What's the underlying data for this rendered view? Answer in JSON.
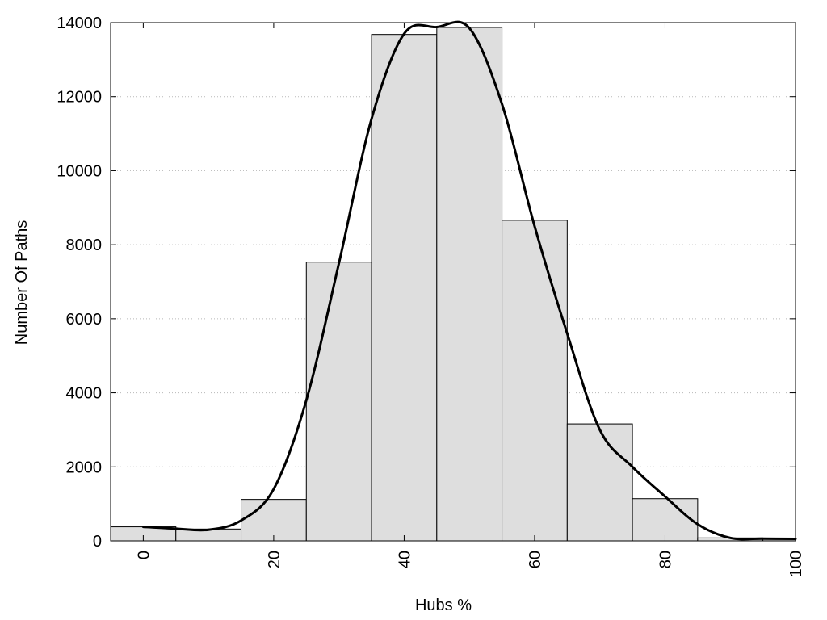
{
  "chart_data": {
    "type": "bar",
    "xlabel": "Hubs %",
    "ylabel": "Number Of Paths",
    "xlim": [
      -5,
      100
    ],
    "ylim": [
      0,
      14000
    ],
    "x_ticks": [
      "0",
      "20",
      "40",
      "60",
      "80",
      "100"
    ],
    "y_ticks": [
      "0",
      "2000",
      "4000",
      "6000",
      "8000",
      "10000",
      "12000",
      "14000"
    ],
    "grid": "horizontal dotted",
    "bar_color": "#dedede",
    "bins": [
      {
        "x0": -5,
        "x1": 5,
        "value": 380
      },
      {
        "x0": 5,
        "x1": 15,
        "value": 320
      },
      {
        "x0": 15,
        "x1": 25,
        "value": 1120
      },
      {
        "x0": 25,
        "x1": 35,
        "value": 7530
      },
      {
        "x0": 35,
        "x1": 45,
        "value": 13680
      },
      {
        "x0": 45,
        "x1": 55,
        "value": 13870
      },
      {
        "x0": 55,
        "x1": 65,
        "value": 8660
      },
      {
        "x0": 65,
        "x1": 75,
        "value": 3160
      },
      {
        "x0": 75,
        "x1": 85,
        "value": 1140
      },
      {
        "x0": 85,
        "x1": 95,
        "value": 80
      },
      {
        "x0": 95,
        "x1": 100,
        "value": 60
      }
    ],
    "density_curve": {
      "x": [
        0,
        5,
        10,
        15,
        20,
        25,
        30,
        35,
        40,
        45,
        50,
        55,
        60,
        65,
        70,
        75,
        80,
        85,
        90,
        95,
        100
      ],
      "y": [
        380,
        330,
        300,
        550,
        1400,
        3800,
        7500,
        11400,
        13700,
        13880,
        13850,
        11800,
        8500,
        5600,
        3000,
        2000,
        1200,
        450,
        80,
        60,
        55
      ]
    }
  }
}
